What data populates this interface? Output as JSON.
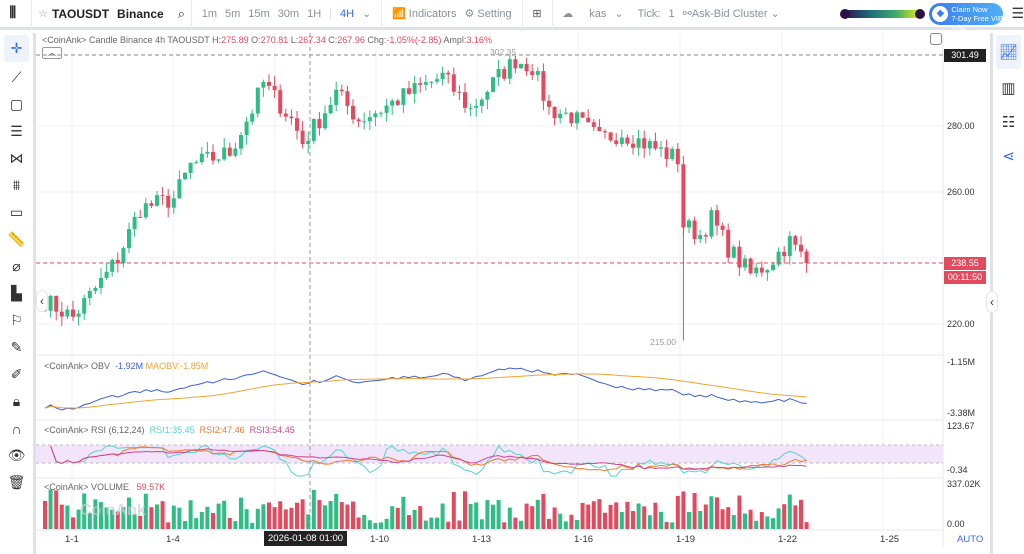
{
  "toolbar": {
    "symbol": "TAOUSDT",
    "exchange": "Binance",
    "intervals": [
      "1m",
      "5m",
      "15m",
      "30m",
      "1H",
      "4H"
    ],
    "active_interval": "4H",
    "indicators": "Indicators",
    "setting": "Setting",
    "kas": "kas",
    "tick": "Tick:",
    "tick_value": "1",
    "cluster": "Ask-Bid Cluster",
    "vip_line1": "Claim Now",
    "vip_line2": "7-Day Free VIP Trial"
  },
  "legend": {
    "prefix": "<CoinAnk> Candle  Binance 4h TAOUSDT",
    "h_label": "H:",
    "h": "275.89",
    "o_label": "O:",
    "o": "270.81",
    "l_label": "L:",
    "l": "267.34",
    "c_label": "C:",
    "c": "267.96",
    "chg_label": "Chg:",
    "chg": "-1.05%(-2.85)",
    "ampl_label": "Ampl:",
    "ampl": "3.16%"
  },
  "obv": {
    "label": "<CoinAnk> OBV",
    "value": "-1.92M",
    "ma": "MAOBV:-1.85M",
    "axis": [
      "-1.15M",
      "-3.38M"
    ]
  },
  "rsi": {
    "label": "<CoinAnk> RSI  (6,12,24)",
    "rsi1": "RSI1:35.45",
    "rsi2": "RSI2:47.46",
    "rsi3": "RSI3:54.45",
    "axis": [
      "123.67",
      "-0.34"
    ]
  },
  "volume": {
    "label": "<CoinAnk> VOLUME",
    "value": "59.57K",
    "axis": [
      "337.02K",
      "0.00"
    ]
  },
  "price_axis": [
    "280.00",
    "260.00",
    "220.00"
  ],
  "high_tag": "301.49",
  "max_label": "302.35",
  "min_label": "215.00",
  "last_price": "238.55",
  "countdown": "00:11:50",
  "time_axis": [
    "1-1",
    "1-4",
    "1-10",
    "1-13",
    "1-16",
    "1-19",
    "1-22",
    "1-25"
  ],
  "crosshair_time": "2026-01-08 01:00",
  "auto": "AUTO",
  "watermark": "CoinAnk",
  "colors": {
    "up": "#2ebd85",
    "down": "#e44a5d",
    "accent": "#2f6bf0"
  },
  "chart_data": {
    "type": "candlestick",
    "price_keypoints": [
      [
        0,
        227
      ],
      [
        5,
        222
      ],
      [
        11,
        235
      ],
      [
        13,
        240
      ],
      [
        17,
        255
      ],
      [
        23,
        258
      ],
      [
        26,
        268
      ],
      [
        33,
        272
      ],
      [
        37,
        285
      ],
      [
        39,
        293
      ],
      [
        44,
        282
      ],
      [
        46,
        275
      ],
      [
        49,
        282
      ],
      [
        52,
        290
      ],
      [
        56,
        282
      ],
      [
        60,
        285
      ],
      [
        65,
        290
      ],
      [
        71,
        295
      ],
      [
        76,
        285
      ],
      [
        81,
        295
      ],
      [
        84,
        300
      ],
      [
        87,
        298
      ],
      [
        90,
        285
      ],
      [
        94,
        283
      ],
      [
        99,
        276
      ],
      [
        103,
        278
      ],
      [
        108,
        274
      ],
      [
        113,
        270
      ],
      [
        114,
        250
      ],
      [
        117,
        247
      ],
      [
        119,
        252
      ],
      [
        122,
        243
      ],
      [
        126,
        235
      ],
      [
        129,
        238
      ],
      [
        133,
        245
      ],
      [
        136,
        238.5
      ]
    ]
  }
}
